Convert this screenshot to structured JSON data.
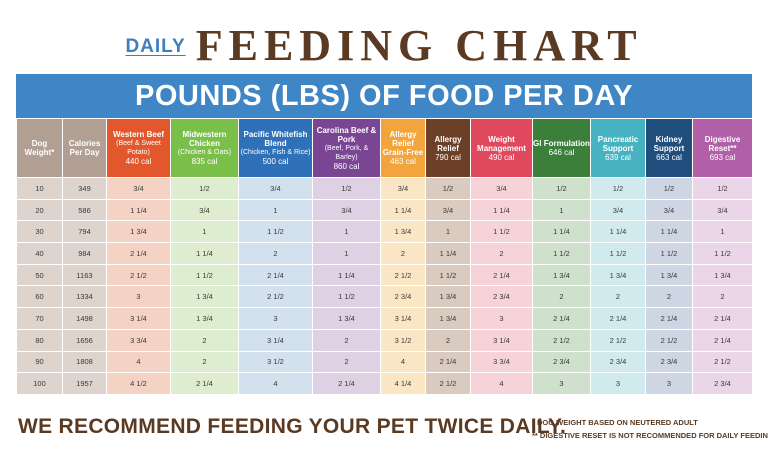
{
  "header": {
    "daily_label": "DAILY",
    "title": "FEEDING CHART",
    "banner": "POUNDS (LBS) OF FOOD PER DAY"
  },
  "table": {
    "columns": [
      {
        "name": "Dog Weight*",
        "subtitle": "",
        "calories": "",
        "color": "#b19f94"
      },
      {
        "name": "Calories Per Day",
        "subtitle": "",
        "calories": "",
        "color": "#b19f94"
      },
      {
        "name": "Western Beef",
        "subtitle": "(Beef & Sweet Potato)",
        "calories": "440 cal",
        "color": "#e2572b"
      },
      {
        "name": "Midwestern Chicken",
        "subtitle": "(Chicken & Oats)",
        "calories": "835 cal",
        "color": "#79bf4a"
      },
      {
        "name": "Pacific Whitefish Blend",
        "subtitle": "(Chicken, Fish & Rice)",
        "calories": "500 cal",
        "color": "#2f71b8"
      },
      {
        "name": "Carolina Beef & Pork",
        "subtitle": "(Beef, Pork, & Barley)",
        "calories": "860 cal",
        "color": "#7a4592"
      },
      {
        "name": "Allergy Relief Grain-Free",
        "subtitle": "",
        "calories": "463 cal",
        "color": "#f1a53c"
      },
      {
        "name": "Allergy Relief",
        "subtitle": "",
        "calories": "790 cal",
        "color": "#6b4026"
      },
      {
        "name": "Weight Management",
        "subtitle": "",
        "calories": "490 cal",
        "color": "#e0485e"
      },
      {
        "name": "GI Formulation",
        "subtitle": "",
        "calories": "646 cal",
        "color": "#3c7f3a"
      },
      {
        "name": "Pancreatic Support",
        "subtitle": "",
        "calories": "639 cal",
        "color": "#47b3c1"
      },
      {
        "name": "Kidney Support",
        "subtitle": "",
        "calories": "663 cal",
        "color": "#1f4e7d"
      },
      {
        "name": "Digestive Reset**",
        "subtitle": "",
        "calories": "693 cal",
        "color": "#b15fa6"
      }
    ],
    "cell_colors": [
      "#dcd4cd",
      "#dcd4cd",
      "#f5d3c4",
      "#deeccf",
      "#d3e0ee",
      "#ddd1e3",
      "#fae5c5",
      "#d9cbc0",
      "#f6d3d8",
      "#cfe0cc",
      "#d1eaee",
      "#cdd6e2",
      "#ead6e8"
    ],
    "rows": [
      [
        "10",
        "349",
        "3/4",
        "1/2",
        "3/4",
        "1/2",
        "3/4",
        "1/2",
        "3/4",
        "1/2",
        "1/2",
        "1/2",
        "1/2"
      ],
      [
        "20",
        "586",
        "1 1/4",
        "3/4",
        "1",
        "3/4",
        "1 1/4",
        "3/4",
        "1 1/4",
        "1",
        "3/4",
        "3/4",
        "3/4"
      ],
      [
        "30",
        "794",
        "1 3/4",
        "1",
        "1 1/2",
        "1",
        "1 3/4",
        "1",
        "1 1/2",
        "1 1/4",
        "1 1/4",
        "1 1/4",
        "1"
      ],
      [
        "40",
        "984",
        "2 1/4",
        "1 1/4",
        "2",
        "1",
        "2",
        "1 1/4",
        "2",
        "1 1/2",
        "1 1/2",
        "1 1/2",
        "1 1/2"
      ],
      [
        "50",
        "1163",
        "2 1/2",
        "1 1/2",
        "2 1/4",
        "1 1/4",
        "2 1/2",
        "1 1/2",
        "2 1/4",
        "1 3/4",
        "1 3/4",
        "1 3/4",
        "1 3/4"
      ],
      [
        "60",
        "1334",
        "3",
        "1 3/4",
        "2 1/2",
        "1 1/2",
        "2 3/4",
        "1 3/4",
        "2 3/4",
        "2",
        "2",
        "2",
        "2"
      ],
      [
        "70",
        "1498",
        "3 1/4",
        "1 3/4",
        "3",
        "1 3/4",
        "3 1/4",
        "1 3/4",
        "3",
        "2 1/4",
        "2 1/4",
        "2 1/4",
        "2 1/4"
      ],
      [
        "80",
        "1656",
        "3 3/4",
        "2",
        "3 1/4",
        "2",
        "3 1/2",
        "2",
        "3 1/4",
        "2 1/2",
        "2 1/2",
        "2 1/2",
        "2 1/4"
      ],
      [
        "90",
        "1808",
        "4",
        "2",
        "3 1/2",
        "2",
        "4",
        "2 1/4",
        "3 3/4",
        "2 3/4",
        "2 3/4",
        "2 3/4",
        "2 1/2"
      ],
      [
        "100",
        "1957",
        "4 1/2",
        "2 1/4",
        "4",
        "2 1/4",
        "4 1/4",
        "2 1/2",
        "4",
        "3",
        "3",
        "3",
        "2 3/4"
      ]
    ]
  },
  "footer": {
    "recommendation": "WE RECOMMEND FEEDING YOUR PET TWICE DAILY.",
    "note_1": "* DOG WEIGHT BASED ON NEUTERED ADULT",
    "note_2": "** DIGESTIVE RESET IS NOT RECOMMENDED FOR DAILY FEEDING"
  }
}
